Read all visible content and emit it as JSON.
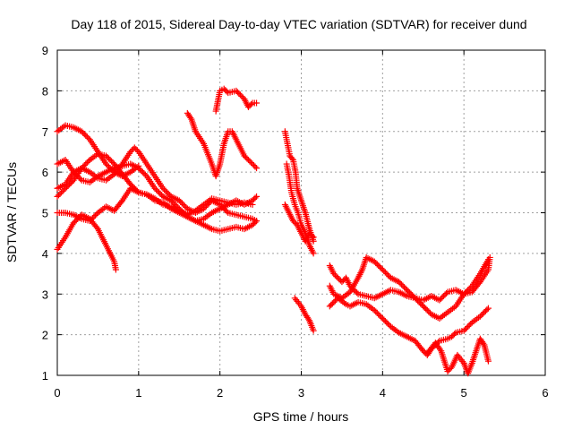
{
  "chart_data": {
    "type": "scatter",
    "title": "Day 118 of 2015, Sidereal Day-to-day VTEC variation (SDTVAR) for receiver dund",
    "xlabel": "GPS time / hours",
    "ylabel": "SDTVAR / TECUs",
    "xlim": [
      0,
      6
    ],
    "ylim": [
      1,
      9
    ],
    "x_ticks": [
      "0",
      "1",
      "2",
      "3",
      "4",
      "5",
      "6"
    ],
    "y_ticks": [
      "1",
      "2",
      "3",
      "4",
      "5",
      "6",
      "7",
      "8",
      "9"
    ],
    "grid": true,
    "marker": "plus",
    "color": "#ff0000",
    "tracks": [
      [
        [
          0.0,
          7.0
        ],
        [
          0.1,
          7.15
        ],
        [
          0.2,
          7.1
        ],
        [
          0.3,
          7.0
        ],
        [
          0.4,
          6.8
        ],
        [
          0.5,
          6.5
        ],
        [
          0.6,
          6.2
        ],
        [
          0.7,
          6.0
        ],
        [
          0.8,
          5.9
        ],
        [
          0.9,
          6.0
        ],
        [
          1.0,
          6.15
        ]
      ],
      [
        [
          0.0,
          6.2
        ],
        [
          0.1,
          6.3
        ],
        [
          0.2,
          6.0
        ],
        [
          0.3,
          5.8
        ],
        [
          0.4,
          5.75
        ],
        [
          0.5,
          5.9
        ],
        [
          0.6,
          6.0
        ],
        [
          0.7,
          6.1
        ],
        [
          0.8,
          6.15
        ],
        [
          0.9,
          6.2
        ],
        [
          1.0,
          6.1
        ],
        [
          1.1,
          5.9
        ],
        [
          1.2,
          5.6
        ],
        [
          1.3,
          5.4
        ],
        [
          1.4,
          5.3
        ],
        [
          1.5,
          5.1
        ],
        [
          1.6,
          4.9
        ],
        [
          1.7,
          4.8
        ],
        [
          1.8,
          4.85
        ],
        [
          1.9,
          5.0
        ],
        [
          2.0,
          5.1
        ],
        [
          2.1,
          5.2
        ],
        [
          2.2,
          5.3
        ],
        [
          2.3,
          5.2
        ],
        [
          2.4,
          5.3
        ],
        [
          2.45,
          5.4
        ]
      ],
      [
        [
          0.0,
          5.6
        ],
        [
          0.1,
          5.7
        ],
        [
          0.2,
          6.0
        ],
        [
          0.3,
          6.1
        ],
        [
          0.4,
          6.0
        ],
        [
          0.5,
          5.85
        ],
        [
          0.6,
          5.8
        ],
        [
          0.7,
          5.95
        ],
        [
          0.8,
          6.2
        ],
        [
          0.9,
          6.5
        ],
        [
          0.95,
          6.6
        ],
        [
          1.0,
          6.5
        ],
        [
          1.1,
          6.2
        ],
        [
          1.2,
          5.9
        ],
        [
          1.3,
          5.6
        ],
        [
          1.4,
          5.4
        ],
        [
          1.5,
          5.3
        ],
        [
          1.6,
          5.1
        ],
        [
          1.7,
          5.0
        ],
        [
          1.8,
          5.1
        ],
        [
          1.9,
          5.3
        ],
        [
          2.0,
          5.2
        ],
        [
          2.1,
          5.0
        ],
        [
          2.2,
          4.95
        ],
        [
          2.3,
          4.9
        ],
        [
          2.4,
          4.85
        ],
        [
          2.45,
          4.8
        ]
      ],
      [
        [
          0.0,
          5.4
        ],
        [
          0.1,
          5.6
        ],
        [
          0.2,
          5.8
        ],
        [
          0.3,
          6.1
        ],
        [
          0.4,
          6.3
        ],
        [
          0.5,
          6.45
        ],
        [
          0.6,
          6.4
        ],
        [
          0.7,
          6.2
        ],
        [
          0.8,
          5.95
        ],
        [
          0.9,
          5.7
        ],
        [
          1.0,
          5.5
        ],
        [
          1.1,
          5.45
        ],
        [
          1.2,
          5.35
        ],
        [
          1.3,
          5.2
        ],
        [
          1.4,
          5.15
        ],
        [
          1.5,
          5.05
        ],
        [
          1.6,
          4.95
        ],
        [
          1.7,
          5.05
        ],
        [
          1.8,
          5.2
        ],
        [
          1.9,
          5.35
        ],
        [
          2.0,
          5.3
        ],
        [
          2.1,
          5.25
        ],
        [
          2.2,
          5.2
        ],
        [
          2.3,
          5.25
        ],
        [
          2.4,
          5.2
        ]
      ],
      [
        [
          0.0,
          5.0
        ],
        [
          0.1,
          5.0
        ],
        [
          0.2,
          4.95
        ],
        [
          0.3,
          4.85
        ],
        [
          0.4,
          4.8
        ],
        [
          0.5,
          5.0
        ],
        [
          0.6,
          5.15
        ],
        [
          0.7,
          5.05
        ],
        [
          0.8,
          5.3
        ],
        [
          0.9,
          5.6
        ],
        [
          1.0,
          5.5
        ],
        [
          1.1,
          5.45
        ],
        [
          1.2,
          5.3
        ],
        [
          1.3,
          5.25
        ],
        [
          1.4,
          5.1
        ],
        [
          1.5,
          5.0
        ],
        [
          1.6,
          4.9
        ],
        [
          1.7,
          4.8
        ],
        [
          1.8,
          4.7
        ],
        [
          1.9,
          4.6
        ],
        [
          2.0,
          4.55
        ],
        [
          2.1,
          4.6
        ],
        [
          2.2,
          4.65
        ],
        [
          2.3,
          4.6
        ],
        [
          2.4,
          4.7
        ],
        [
          2.45,
          4.8
        ]
      ],
      [
        [
          0.0,
          4.1
        ],
        [
          0.1,
          4.4
        ],
        [
          0.2,
          4.75
        ],
        [
          0.3,
          4.95
        ],
        [
          0.4,
          4.85
        ],
        [
          0.5,
          4.6
        ],
        [
          0.6,
          4.2
        ],
        [
          0.7,
          3.8
        ],
        [
          0.72,
          3.6
        ]
      ],
      [
        [
          1.6,
          7.45
        ],
        [
          1.65,
          7.3
        ],
        [
          1.7,
          7.0
        ],
        [
          1.8,
          6.7
        ],
        [
          1.9,
          6.2
        ],
        [
          1.95,
          5.9
        ],
        [
          2.0,
          6.2
        ],
        [
          2.05,
          6.7
        ],
        [
          2.1,
          7.0
        ],
        [
          2.15,
          7.0
        ],
        [
          2.2,
          6.8
        ],
        [
          2.3,
          6.4
        ],
        [
          2.4,
          6.2
        ],
        [
          2.45,
          6.1
        ]
      ],
      [
        [
          1.95,
          7.5
        ],
        [
          2.0,
          8.0
        ],
        [
          2.05,
          8.05
        ],
        [
          2.1,
          7.95
        ],
        [
          2.2,
          8.0
        ],
        [
          2.3,
          7.8
        ],
        [
          2.35,
          7.6
        ],
        [
          2.4,
          7.7
        ],
        [
          2.45,
          7.7
        ]
      ],
      [
        [
          2.8,
          7.0
        ],
        [
          2.83,
          6.7
        ],
        [
          2.86,
          6.4
        ],
        [
          2.9,
          6.3
        ],
        [
          2.93,
          6.0
        ],
        [
          2.95,
          5.6
        ],
        [
          3.0,
          5.3
        ],
        [
          3.05,
          5.0
        ],
        [
          3.1,
          4.6
        ],
        [
          3.15,
          4.3
        ]
      ],
      [
        [
          2.82,
          6.2
        ],
        [
          2.85,
          5.9
        ],
        [
          2.88,
          5.5
        ],
        [
          2.92,
          5.2
        ],
        [
          2.96,
          5.0
        ],
        [
          3.0,
          4.7
        ],
        [
          3.05,
          4.5
        ],
        [
          3.1,
          4.2
        ],
        [
          3.15,
          4.0
        ]
      ],
      [
        [
          2.8,
          5.2
        ],
        [
          2.85,
          5.0
        ],
        [
          2.9,
          4.8
        ],
        [
          2.95,
          4.7
        ],
        [
          3.0,
          4.5
        ],
        [
          3.05,
          4.3
        ],
        [
          3.1,
          4.5
        ],
        [
          3.15,
          4.4
        ]
      ],
      [
        [
          2.92,
          2.9
        ],
        [
          3.0,
          2.7
        ],
        [
          3.05,
          2.5
        ],
        [
          3.1,
          2.35
        ],
        [
          3.15,
          2.1
        ]
      ],
      [
        [
          3.35,
          3.7
        ],
        [
          3.4,
          3.5
        ],
        [
          3.45,
          3.4
        ],
        [
          3.5,
          3.3
        ],
        [
          3.55,
          3.4
        ],
        [
          3.6,
          3.2
        ],
        [
          3.7,
          3.0
        ],
        [
          3.8,
          2.95
        ],
        [
          3.9,
          2.9
        ],
        [
          4.0,
          3.0
        ],
        [
          4.1,
          3.1
        ],
        [
          4.2,
          3.05
        ],
        [
          4.3,
          2.95
        ],
        [
          4.4,
          2.9
        ],
        [
          4.5,
          2.85
        ],
        [
          4.6,
          2.95
        ],
        [
          4.7,
          2.85
        ],
        [
          4.8,
          3.05
        ],
        [
          4.9,
          3.1
        ],
        [
          5.0,
          3.0
        ],
        [
          5.1,
          3.05
        ],
        [
          5.2,
          3.3
        ],
        [
          5.3,
          3.6
        ],
        [
          5.32,
          3.9
        ]
      ],
      [
        [
          3.35,
          3.2
        ],
        [
          3.4,
          3.0
        ],
        [
          3.5,
          2.9
        ],
        [
          3.6,
          3.05
        ],
        [
          3.7,
          3.4
        ],
        [
          3.75,
          3.6
        ],
        [
          3.8,
          3.9
        ],
        [
          3.9,
          3.8
        ],
        [
          4.0,
          3.6
        ],
        [
          4.1,
          3.4
        ],
        [
          4.2,
          3.3
        ],
        [
          4.3,
          3.1
        ],
        [
          4.4,
          2.9
        ],
        [
          4.5,
          2.7
        ],
        [
          4.6,
          2.5
        ],
        [
          4.7,
          2.4
        ],
        [
          4.8,
          2.55
        ],
        [
          4.9,
          2.7
        ],
        [
          5.0,
          3.0
        ],
        [
          5.1,
          3.2
        ],
        [
          5.2,
          3.5
        ],
        [
          5.3,
          3.85
        ]
      ],
      [
        [
          3.35,
          2.7
        ],
        [
          3.45,
          2.9
        ],
        [
          3.55,
          2.75
        ],
        [
          3.6,
          2.7
        ],
        [
          3.7,
          2.8
        ],
        [
          3.8,
          2.75
        ],
        [
          3.9,
          2.6
        ],
        [
          4.0,
          2.4
        ],
        [
          4.1,
          2.2
        ],
        [
          4.2,
          2.05
        ],
        [
          4.3,
          1.95
        ],
        [
          4.4,
          1.85
        ],
        [
          4.5,
          1.6
        ],
        [
          4.55,
          1.5
        ],
        [
          4.6,
          1.65
        ],
        [
          4.7,
          1.85
        ],
        [
          4.8,
          1.9
        ],
        [
          4.85,
          1.95
        ],
        [
          4.9,
          2.05
        ],
        [
          5.0,
          2.1
        ],
        [
          5.1,
          2.3
        ],
        [
          5.2,
          2.45
        ],
        [
          5.3,
          2.65
        ]
      ],
      [
        [
          4.55,
          1.55
        ],
        [
          4.65,
          1.8
        ],
        [
          4.72,
          1.6
        ],
        [
          4.8,
          1.1
        ],
        [
          4.85,
          1.2
        ],
        [
          4.92,
          1.5
        ],
        [
          5.0,
          1.3
        ],
        [
          5.05,
          1.05
        ],
        [
          5.1,
          1.3
        ],
        [
          5.15,
          1.6
        ],
        [
          5.2,
          1.9
        ],
        [
          5.25,
          1.75
        ],
        [
          5.3,
          1.35
        ]
      ]
    ]
  }
}
